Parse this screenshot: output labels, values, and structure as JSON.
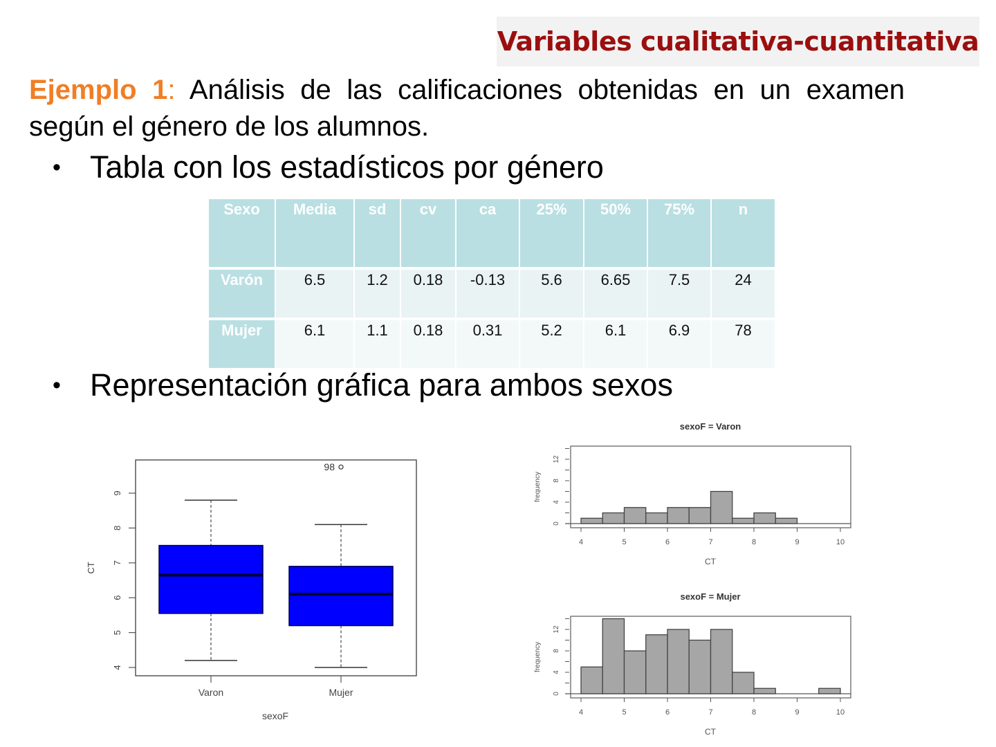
{
  "header": {
    "title": "Variables cualitativa-cuantitativa",
    "title_color": "#9b0f0f",
    "banner_bg": "#f2f2f2"
  },
  "intro": {
    "label": "Ejemplo 1",
    "separator": ":",
    "text": "Análisis de las calificaciones obtenidas en un examen según el género de los alumnos.",
    "accent_color": "#f07e26"
  },
  "bullets": [
    {
      "marker": "•",
      "text": "Tabla con los estadísticos por género"
    },
    {
      "marker": "•",
      "text": "Representación gráfica para ambos sexos"
    }
  ],
  "table": {
    "headers": [
      "Sexo",
      "Media",
      "sd",
      "cv",
      "ca",
      "25%",
      "50%",
      "75%",
      "n"
    ],
    "rows": [
      [
        "Varón",
        "6.5",
        "1.2",
        "0.18",
        "-0.13",
        "5.6",
        "6.65",
        "7.5",
        "24"
      ],
      [
        "Mujer",
        "6.1",
        "1.1",
        "0.18",
        "0.31",
        "5.2",
        "6.1",
        "6.9",
        "78"
      ]
    ],
    "header_bg": "#b9dfe2"
  },
  "chart_data": [
    {
      "type": "boxplot",
      "title": "",
      "xlabel": "sexoF",
      "ylabel": "CT",
      "categories": [
        "Varon",
        "Mujer"
      ],
      "yticks": [
        4,
        5,
        6,
        7,
        8,
        9
      ],
      "ylim": [
        3.75,
        10.0
      ],
      "fill_color": "#0000ff",
      "boxes": [
        {
          "name": "Varon",
          "whisker_low": 4.2,
          "q1": 5.55,
          "median": 6.65,
          "q3": 7.5,
          "whisker_high": 8.8,
          "outliers": []
        },
        {
          "name": "Mujer",
          "whisker_low": 4.0,
          "q1": 5.2,
          "median": 6.1,
          "q3": 6.9,
          "whisker_high": 8.1,
          "outliers": [
            {
              "value": 9.75,
              "label": "98"
            }
          ]
        }
      ]
    },
    {
      "type": "bar",
      "subtype": "histogram",
      "title": "sexoF = Varon",
      "xlabel": "CT",
      "ylabel": "frequency",
      "bin_edges": [
        4,
        4.5,
        5,
        5.5,
        6,
        6.5,
        7,
        7.5,
        8,
        8.5,
        9,
        9.5,
        10
      ],
      "values": [
        1,
        2,
        3,
        2,
        3,
        3,
        6,
        1,
        2,
        1,
        0,
        0
      ],
      "xticks": [
        4,
        5,
        6,
        7,
        8,
        9,
        10
      ],
      "yticks": [
        0,
        4,
        8,
        12
      ],
      "ylim": [
        0,
        14
      ],
      "bar_color": "#a6a6a6"
    },
    {
      "type": "bar",
      "subtype": "histogram",
      "title": "sexoF = Mujer",
      "xlabel": "CT",
      "ylabel": "frequency",
      "bin_edges": [
        4,
        4.5,
        5,
        5.5,
        6,
        6.5,
        7,
        7.5,
        8,
        8.5,
        9,
        9.5,
        10
      ],
      "values": [
        5,
        14,
        8,
        11,
        12,
        10,
        12,
        4,
        1,
        0,
        0,
        1
      ],
      "xticks": [
        4,
        5,
        6,
        7,
        8,
        9,
        10
      ],
      "yticks": [
        0,
        4,
        8,
        12
      ],
      "ylim": [
        0,
        14
      ],
      "bar_color": "#a6a6a6"
    }
  ]
}
